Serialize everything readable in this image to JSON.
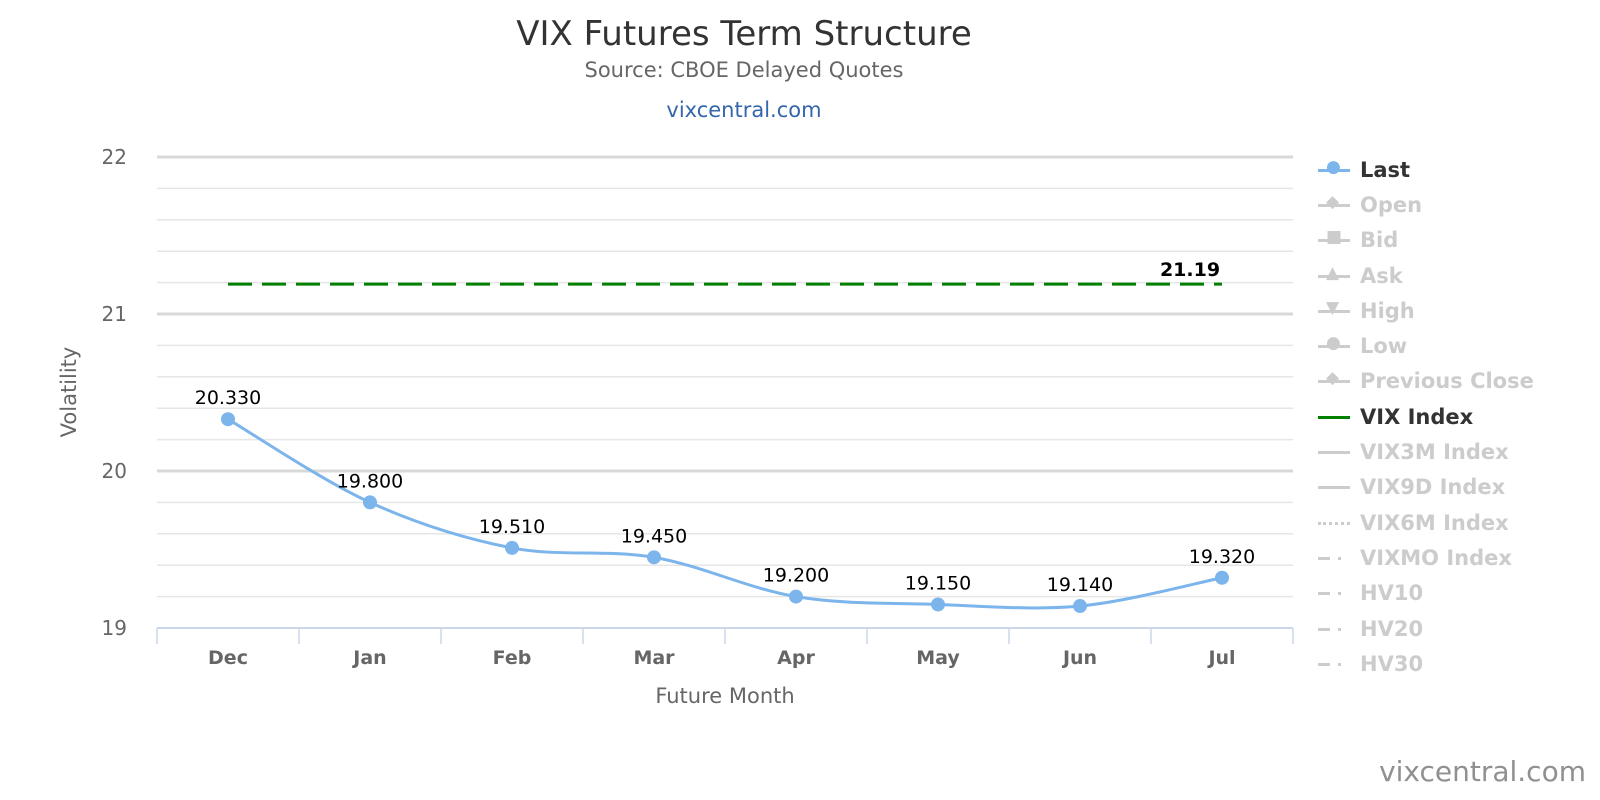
{
  "title": "VIX Futures Term Structure",
  "subtitle": "Source: CBOE Delayed Quotes",
  "link": "vixcentral.com",
  "credit": "vixcentral.com",
  "colors": {
    "last": "#7cb5ec",
    "vix": "#008000",
    "inactive": "#cccccc"
  },
  "chart_data": {
    "type": "line",
    "title": "VIX Futures Term Structure",
    "xlabel": "Future Month",
    "ylabel": "Volatility",
    "categories": [
      "Dec",
      "Jan",
      "Feb",
      "Mar",
      "Apr",
      "May",
      "Jun",
      "Jul"
    ],
    "ylim": [
      19,
      22
    ],
    "yticks": [
      "19",
      "20",
      "21",
      "22"
    ],
    "series": [
      {
        "name": "Last",
        "values": [
          20.33,
          19.8,
          19.51,
          19.45,
          19.2,
          19.15,
          19.14,
          19.32
        ],
        "labels": [
          "20.330",
          "19.800",
          "19.510",
          "19.450",
          "19.200",
          "19.150",
          "19.140",
          "19.320"
        ]
      },
      {
        "name": "VIX Index",
        "value": 21.19,
        "label": "21.19",
        "style": "dashed"
      }
    ],
    "legend": {
      "placement": "right",
      "items": [
        {
          "name": "Last",
          "active": true,
          "symbol": "circle"
        },
        {
          "name": "Open",
          "active": false,
          "symbol": "diamond"
        },
        {
          "name": "Bid",
          "active": false,
          "symbol": "square"
        },
        {
          "name": "Ask",
          "active": false,
          "symbol": "triangle"
        },
        {
          "name": "High",
          "active": false,
          "symbol": "triangle-down"
        },
        {
          "name": "Low",
          "active": false,
          "symbol": "circle"
        },
        {
          "name": "Previous Close",
          "active": false,
          "symbol": "diamond"
        },
        {
          "name": "VIX Index",
          "active": true,
          "symbol": "line"
        },
        {
          "name": "VIX3M Index",
          "active": false,
          "symbol": "line"
        },
        {
          "name": "VIX9D Index",
          "active": false,
          "symbol": "line"
        },
        {
          "name": "VIX6M Index",
          "active": false,
          "symbol": "dotted"
        },
        {
          "name": "VIXMO Index",
          "active": false,
          "symbol": "dashdot"
        },
        {
          "name": "HV10",
          "active": false,
          "symbol": "dashdot"
        },
        {
          "name": "HV20",
          "active": false,
          "symbol": "dashdot"
        },
        {
          "name": "HV30",
          "active": false,
          "symbol": "dashdot"
        }
      ]
    }
  }
}
